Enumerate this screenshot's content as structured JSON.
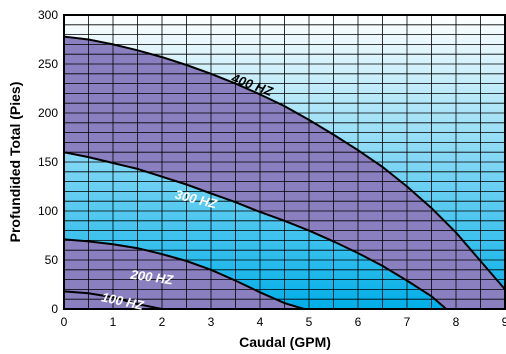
{
  "chart_data": {
    "type": "line",
    "title": "",
    "xlabel": "Caudal (GPM)",
    "ylabel": "Profundided Total (Pies)",
    "xlim": [
      0,
      9
    ],
    "ylim": [
      0,
      300
    ],
    "x_ticks": [
      "0",
      "1",
      "2",
      "3",
      "4",
      "5",
      "6",
      "7",
      "8",
      "9"
    ],
    "y_ticks": [
      "0",
      "50",
      "100",
      "150",
      "200",
      "250",
      "300"
    ],
    "grid": true,
    "series": [
      {
        "name": "100 HZ",
        "points": [
          [
            0,
            18
          ],
          [
            0.5,
            16
          ],
          [
            1,
            12
          ],
          [
            1.5,
            5
          ],
          [
            2,
            0
          ]
        ]
      },
      {
        "name": "200 HZ",
        "points": [
          [
            0,
            71
          ],
          [
            0.5,
            69
          ],
          [
            1,
            66
          ],
          [
            1.5,
            62
          ],
          [
            2,
            56
          ],
          [
            2.5,
            49
          ],
          [
            3,
            40
          ],
          [
            3.5,
            29
          ],
          [
            4,
            17
          ],
          [
            4.5,
            6
          ],
          [
            4.9,
            0
          ]
        ]
      },
      {
        "name": "300 HZ",
        "points": [
          [
            0,
            160
          ],
          [
            0.5,
            155
          ],
          [
            1,
            149
          ],
          [
            1.5,
            143
          ],
          [
            2,
            135
          ],
          [
            2.5,
            127
          ],
          [
            3,
            118
          ],
          [
            3.5,
            109
          ],
          [
            4,
            99
          ],
          [
            4.5,
            90
          ],
          [
            5,
            80
          ],
          [
            5.5,
            69
          ],
          [
            6,
            57
          ],
          [
            6.5,
            44
          ],
          [
            7,
            29
          ],
          [
            7.5,
            13
          ],
          [
            7.8,
            0
          ]
        ]
      },
      {
        "name": "400 HZ",
        "points": [
          [
            0,
            278
          ],
          [
            0.5,
            275
          ],
          [
            1,
            270
          ],
          [
            1.5,
            264
          ],
          [
            2,
            257
          ],
          [
            2.5,
            249
          ],
          [
            3,
            240
          ],
          [
            3.5,
            230
          ],
          [
            4,
            219
          ],
          [
            4.5,
            207
          ],
          [
            5,
            193
          ],
          [
            5.5,
            178
          ],
          [
            6,
            162
          ],
          [
            6.5,
            145
          ],
          [
            7,
            125
          ],
          [
            7.5,
            103
          ],
          [
            8,
            78
          ],
          [
            8.5,
            49
          ],
          [
            9,
            20
          ]
        ]
      }
    ],
    "colors": {
      "band_fill": "#8a80c0",
      "background_top": "#ffffff",
      "background_bottom": "#00aee8",
      "grid": "#000000",
      "curve": "#000000",
      "label_400": "#000000",
      "label_other": "#ffffff"
    }
  }
}
